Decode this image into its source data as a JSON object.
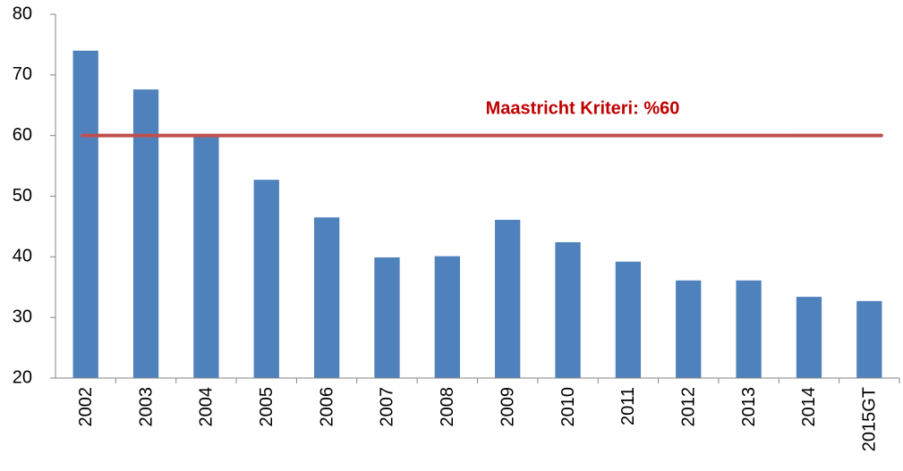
{
  "chart_data": {
    "type": "bar",
    "categories": [
      "2002",
      "2003",
      "2004",
      "2005",
      "2006",
      "2007",
      "2008",
      "2009",
      "2010",
      "2011",
      "2012",
      "2013",
      "2014",
      "2015GT"
    ],
    "values": [
      74,
      67.6,
      59.9,
      52.7,
      46.5,
      39.9,
      40.1,
      46.1,
      42.4,
      39.2,
      36.1,
      36.1,
      33.4,
      32.7
    ],
    "color": "#4f81bd",
    "ylim": [
      20,
      80
    ],
    "yticks": [
      20,
      30,
      40,
      50,
      60,
      70,
      80
    ],
    "reference_line": {
      "value": 60,
      "label": "Maastricht Kriteri: %60",
      "color": "#c0504d",
      "label_color": "#c00000"
    }
  }
}
